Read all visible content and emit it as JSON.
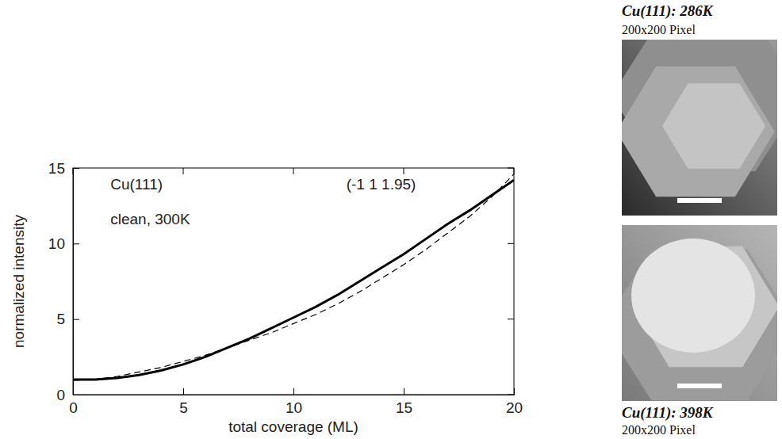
{
  "chart_data": {
    "type": "line",
    "x_label": "total coverage (ML)",
    "y_label": "normalized intensity",
    "annotations": [
      "Cu(111)",
      "(-1 1 1.95)",
      "clean, 300K"
    ],
    "x": [
      0,
      1,
      2,
      3,
      4,
      5,
      6,
      7,
      8,
      9,
      10,
      11,
      12,
      13,
      14,
      15,
      16,
      17,
      18,
      19,
      20
    ],
    "series": [
      {
        "color": "#000000",
        "line_style": "solid",
        "values": [
          1.0,
          1.0,
          1.1,
          1.3,
          1.6,
          2.0,
          2.5,
          3.1,
          3.7,
          4.4,
          5.1,
          5.8,
          6.6,
          7.5,
          8.4,
          9.3,
          10.3,
          11.3,
          12.2,
          13.2,
          14.2
        ]
      },
      {
        "color": "#000000",
        "line_style": "dashed",
        "values": [
          0.95,
          1.0,
          1.2,
          1.5,
          1.8,
          2.2,
          2.6,
          3.1,
          3.6,
          4.1,
          4.7,
          5.3,
          6.0,
          6.8,
          7.7,
          8.6,
          9.6,
          10.7,
          11.8,
          13.1,
          14.6
        ]
      }
    ],
    "xlim": [
      0,
      20
    ],
    "xticks": [
      0,
      5,
      10,
      15,
      20
    ],
    "ylim": [
      0,
      15
    ],
    "yticks": [
      0,
      5,
      10,
      15
    ],
    "grid": false
  },
  "panels": [
    {
      "title": "Cu(111): 286K",
      "subtitle": "200x200 Pixel"
    },
    {
      "title": "Cu(111): 398K",
      "subtitle": "200x200 Pixel"
    }
  ]
}
